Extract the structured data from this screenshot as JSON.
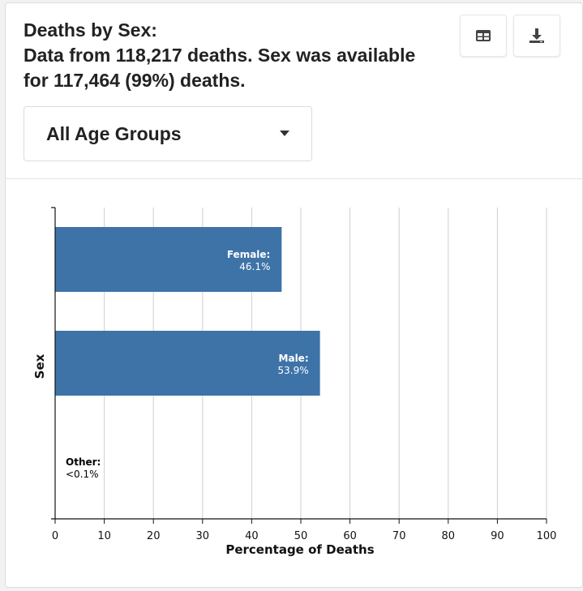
{
  "panel": {
    "title_line1": "Deaths by Sex:",
    "title_line2": "Data from 118,217 deaths. Sex was available",
    "title_line3": "for 117,464 (99%) deaths."
  },
  "controls": {
    "age_group_selected": "All Age Groups",
    "table_icon": "table-icon",
    "download_icon": "download-icon"
  },
  "colors": {
    "bar": "#3e73a8",
    "accent": "#3e73a8"
  },
  "chart_data": {
    "type": "bar",
    "orientation": "horizontal",
    "categories": [
      "Female",
      "Male",
      "Other"
    ],
    "values": [
      46.1,
      53.9,
      0.05
    ],
    "data_labels": [
      {
        "name": "Female:",
        "value": "46.1%"
      },
      {
        "name": "Male:",
        "value": "53.9%"
      },
      {
        "name": "Other:",
        "value": "<0.1%"
      }
    ],
    "xlabel": "Percentage of Deaths",
    "ylabel": "Sex",
    "xlim": [
      0,
      100
    ],
    "xticks": [
      0,
      10,
      20,
      30,
      40,
      50,
      60,
      70,
      80,
      90,
      100
    ],
    "grid": true
  }
}
